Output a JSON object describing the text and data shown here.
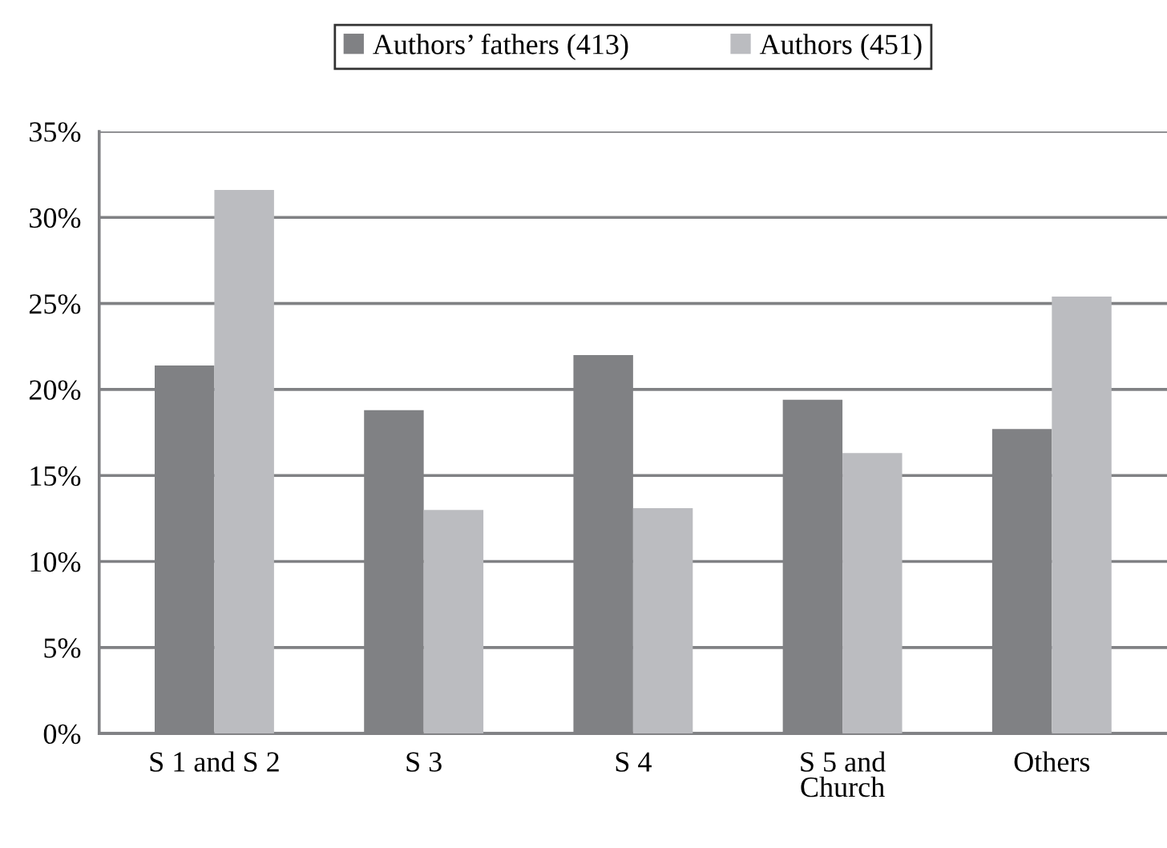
{
  "chart_data": {
    "type": "bar",
    "categories": [
      "S 1 and S 2",
      "S 3",
      "S 4",
      "S 5 and\nChurch",
      "Others"
    ],
    "series": [
      {
        "name": "Authors’ fathers (413)",
        "color": "#808184",
        "values": [
          21.4,
          18.8,
          22.0,
          19.4,
          17.7
        ]
      },
      {
        "name": "Authors (451)",
        "color": "#bbbcc0",
        "values": [
          31.6,
          13.0,
          13.1,
          16.3,
          25.4
        ]
      }
    ],
    "ylim": [
      0,
      35
    ],
    "yticks": [
      {
        "value": 0,
        "label": "0%"
      },
      {
        "value": 5,
        "label": "5%"
      },
      {
        "value": 10,
        "label": "10%"
      },
      {
        "value": 15,
        "label": "15%"
      },
      {
        "value": 20,
        "label": "20%"
      },
      {
        "value": 25,
        "label": "25%"
      },
      {
        "value": 30,
        "label": "30%"
      },
      {
        "value": 35,
        "label": "35%"
      }
    ],
    "grid": "y",
    "legend": "top"
  }
}
